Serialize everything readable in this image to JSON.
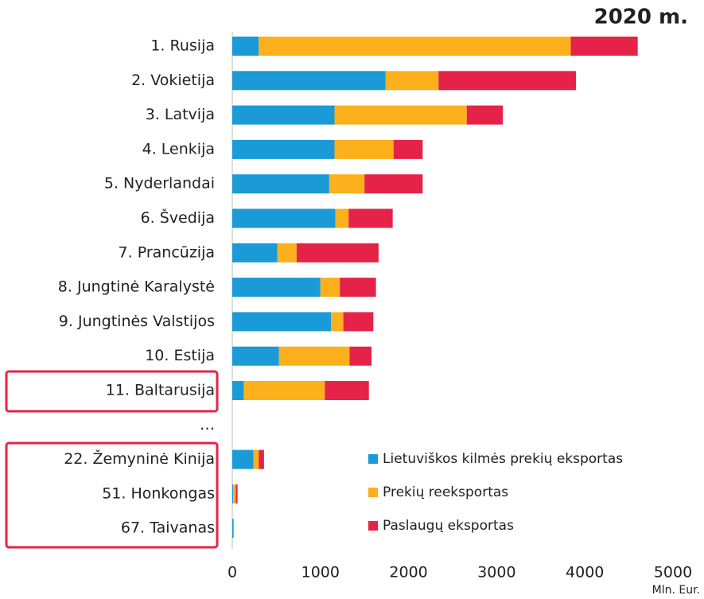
{
  "chart_data": {
    "type": "stacked_barh",
    "title": "2020 m.",
    "x_label": "Mln. Eur.",
    "categories": [
      "1. Rusija",
      "2. Vokietija",
      "3. Latvija",
      "4. Lenkija",
      "5. Nyderlandai",
      "6. Švedija",
      "7. Prancūzija",
      "8. Jungtinė Karalystė",
      "9. Jungtinės Valstijos",
      "10. Estija",
      "11. Baltarusija",
      "…",
      "22. Žemyninė Kinija",
      "51. Honkongas",
      "67. Taivanas"
    ],
    "series": [
      {
        "name": "Lietuviškos kilmės prekių eksportas",
        "color": "#1a9ad6",
        "values": [
          300,
          1740,
          1160,
          1160,
          1100,
          1170,
          510,
          1000,
          1120,
          530,
          130,
          null,
          240,
          10,
          10
        ]
      },
      {
        "name": "Prekių reeksportas",
        "color": "#fbb01c",
        "values": [
          3540,
          600,
          1500,
          670,
          400,
          150,
          220,
          220,
          140,
          800,
          920,
          null,
          60,
          30,
          0
        ]
      },
      {
        "name": "Paslaugų eksportas",
        "color": "#e52349",
        "values": [
          760,
          1560,
          410,
          330,
          660,
          500,
          930,
          410,
          340,
          250,
          500,
          null,
          60,
          20,
          5
        ]
      }
    ],
    "xlim": [
      0,
      5000
    ],
    "xticks": [
      0,
      1000,
      2000,
      3000,
      4000,
      5000
    ]
  }
}
